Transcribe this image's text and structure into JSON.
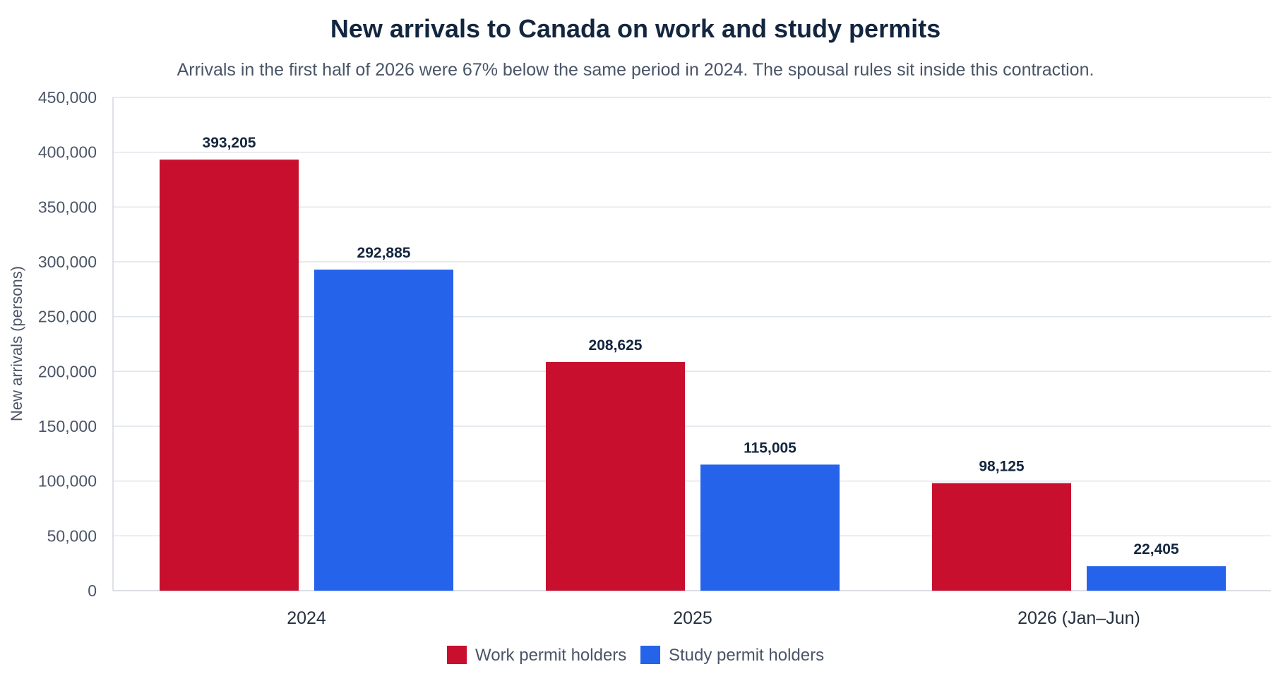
{
  "chart_data": {
    "type": "bar",
    "title": "New arrivals to Canada on work and study permits",
    "subtitle": "Arrivals in the first half of 2026 were 67% below the same period in 2024. The spousal rules sit inside this contraction.",
    "xlabel": "",
    "ylabel": "New arrivals (persons)",
    "categories": [
      "2024",
      "2025",
      "2026 (Jan–Jun)"
    ],
    "series": [
      {
        "name": "Work permit holders",
        "color": "#c8102e",
        "values": [
          393205,
          208625,
          98125
        ],
        "labels": [
          "393,205",
          "208,625",
          "98,125"
        ]
      },
      {
        "name": "Study permit holders",
        "color": "#2563eb",
        "values": [
          292885,
          115005,
          22405
        ],
        "labels": [
          "292,885",
          "115,005",
          "22,405"
        ]
      }
    ],
    "ylim": [
      0,
      450000
    ],
    "yticks": [
      0,
      50000,
      100000,
      150000,
      200000,
      250000,
      300000,
      350000,
      400000,
      450000
    ],
    "ytick_labels": [
      "0",
      "50,000",
      "100,000",
      "150,000",
      "200,000",
      "250,000",
      "300,000",
      "350,000",
      "400,000",
      "450,000"
    ],
    "grid": true,
    "legend_position": "bottom-center"
  }
}
